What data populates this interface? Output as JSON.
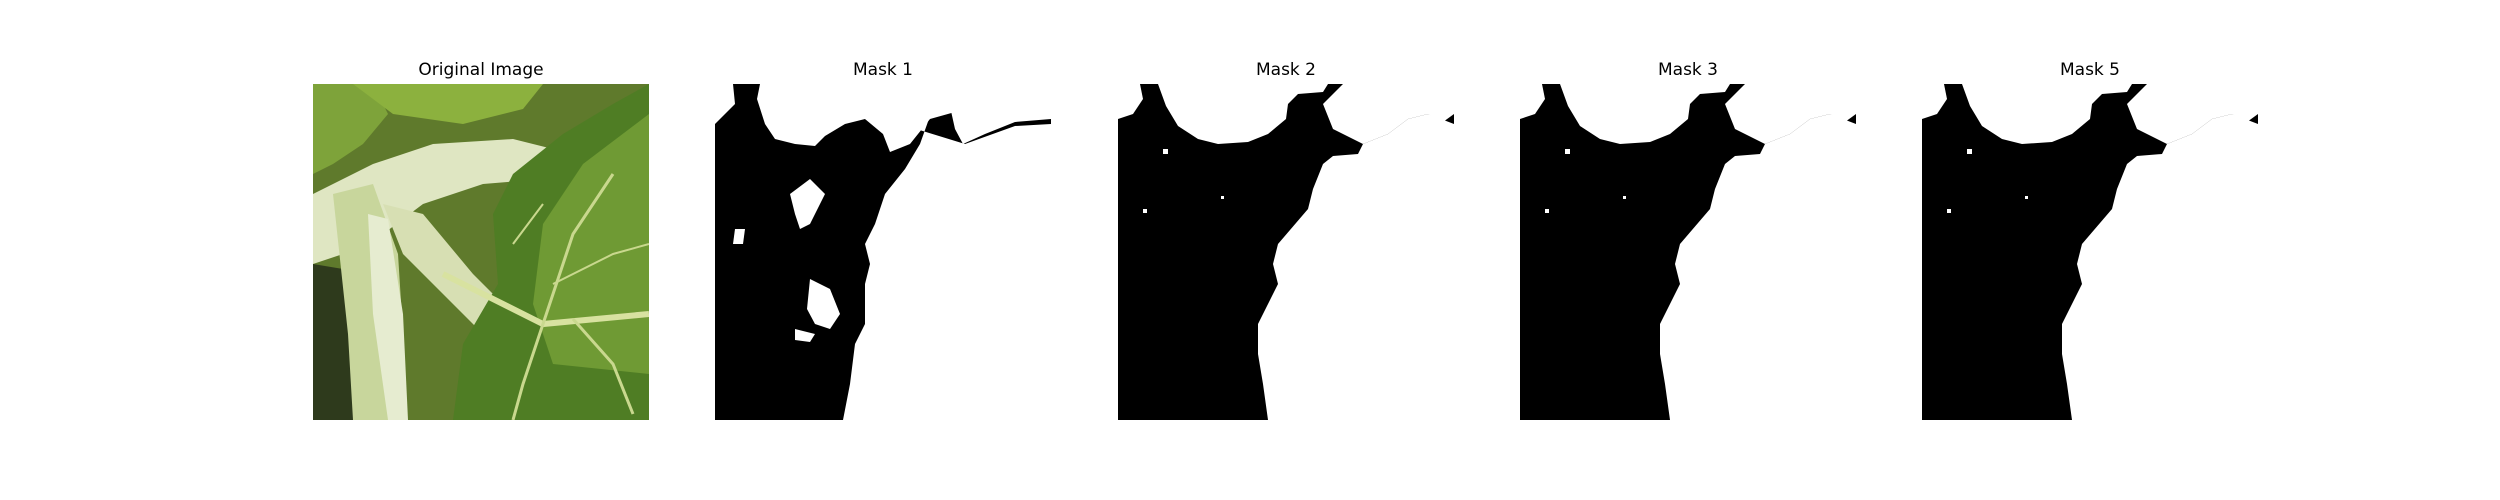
{
  "panels": [
    {
      "title": "Original Image",
      "content": "photo"
    },
    {
      "title": "Mask 1",
      "content": "mask"
    },
    {
      "title": "Mask 2",
      "content": "mask"
    },
    {
      "title": "Mask 3",
      "content": "mask"
    },
    {
      "title": "Mask 5",
      "content": "mask"
    }
  ],
  "colors": {
    "mask_fg": "#ffffff",
    "mask_bg": "#000000",
    "leaf_dark": "#3f6a1e",
    "leaf_light": "#8fb23c",
    "stem": "#d8e2b6"
  }
}
